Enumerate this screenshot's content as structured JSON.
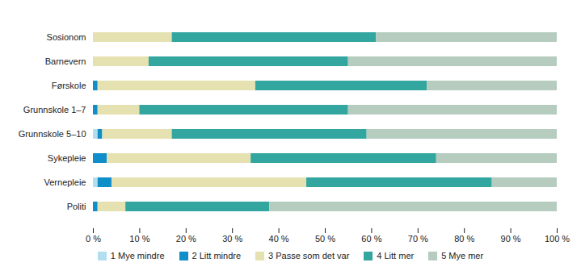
{
  "chart_data": {
    "type": "bar",
    "orientation": "horizontal",
    "stacked": true,
    "grid": false,
    "legend": "bottom",
    "categories": [
      "Sosionom",
      "Barnevern",
      "Førskole",
      "Grunnskole 1–7",
      "Grunnskole 5–10",
      "Sykepleie",
      "Vernepleie",
      "Politi"
    ],
    "series": [
      {
        "name": "1 Mye mindre",
        "color": "#b3def0",
        "values": [
          0,
          0,
          0,
          0,
          1,
          0,
          1,
          0
        ]
      },
      {
        "name": "2 Litt mindre",
        "color": "#0f8ec9",
        "values": [
          0,
          0,
          1,
          1,
          1,
          3,
          3,
          1
        ]
      },
      {
        "name": "3 Passe som det var",
        "color": "#e6e1b1",
        "values": [
          17,
          12,
          34,
          9,
          15,
          31,
          42,
          6
        ]
      },
      {
        "name": "4 Litt mer",
        "color": "#33a6a0",
        "values": [
          44,
          43,
          37,
          45,
          42,
          40,
          40,
          31
        ]
      },
      {
        "name": "5 Mye mer",
        "color": "#b5ccbf",
        "values": [
          39,
          45,
          28,
          45,
          41,
          26,
          14,
          62
        ]
      }
    ],
    "xlim": [
      0,
      100
    ],
    "xticks": [
      {
        "value": 0,
        "label": "0 %"
      },
      {
        "value": 10,
        "label": "10 %"
      },
      {
        "value": 20,
        "label": "20 %"
      },
      {
        "value": 30,
        "label": "30 %"
      },
      {
        "value": 40,
        "label": "40 %"
      },
      {
        "value": 50,
        "label": "50 %"
      },
      {
        "value": 60,
        "label": "60 %"
      },
      {
        "value": 70,
        "label": "70 %"
      },
      {
        "value": 80,
        "label": "80 %"
      },
      {
        "value": 90,
        "label": "90 %"
      },
      {
        "value": 100,
        "label": "100 %"
      }
    ]
  }
}
